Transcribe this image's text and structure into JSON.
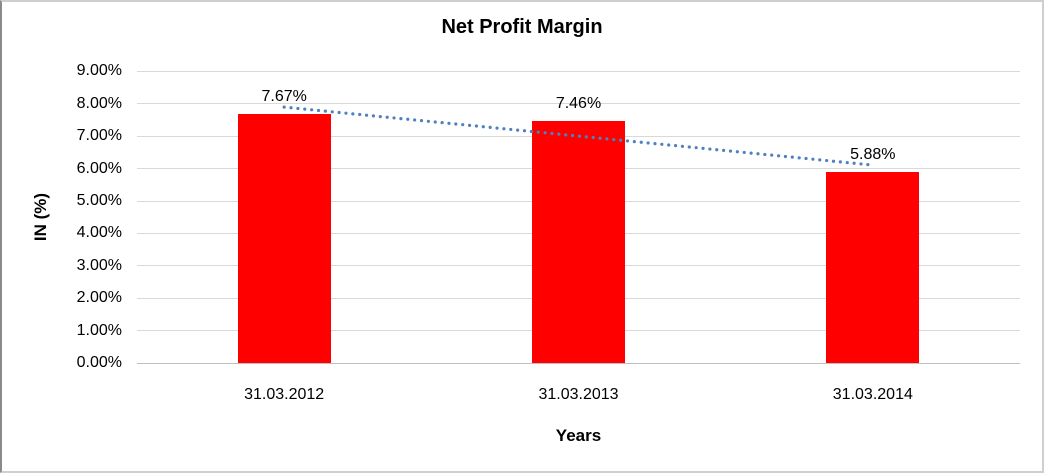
{
  "chart_data": {
    "type": "bar",
    "title": "Net Profit Margin",
    "xlabel": "Years",
    "ylabel": "IN (%)",
    "categories": [
      "31.03.2012",
      "31.03.2013",
      "31.03.2014"
    ],
    "values": [
      7.67,
      7.46,
      5.88
    ],
    "bar_labels": [
      "7.67%",
      "7.46%",
      "5.88%"
    ],
    "y_tick_labels": [
      "0.00%",
      "1.00%",
      "2.00%",
      "3.00%",
      "4.00%",
      "5.00%",
      "6.00%",
      "7.00%",
      "8.00%",
      "9.00%"
    ],
    "ylim": [
      0,
      9
    ],
    "grid": "horizontal-only",
    "legend": "none",
    "bar_color": "#FF0000",
    "gridline_color": "#D9D9D9",
    "axis_line_color": "#BFBFBF",
    "trendline": {
      "type": "linear",
      "style": "dotted",
      "color": "#4E81BD",
      "fit_values": [
        7.898,
        7.003,
        6.108
      ]
    }
  }
}
